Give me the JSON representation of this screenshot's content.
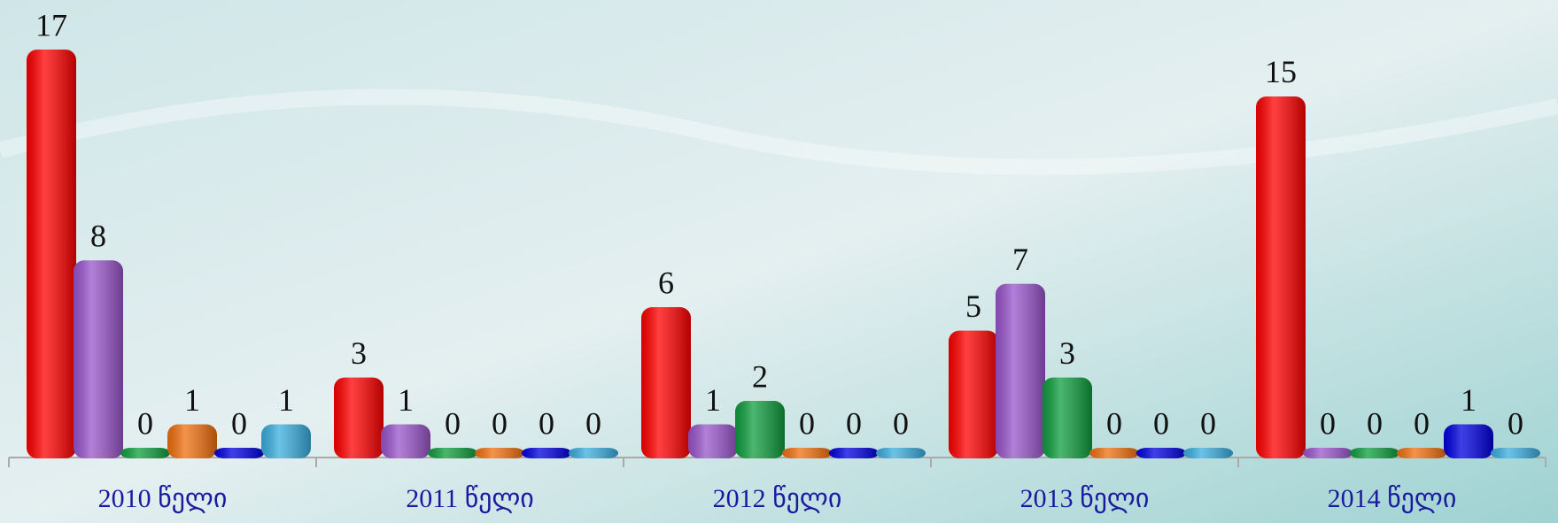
{
  "chart_data": {
    "type": "bar",
    "categories": [
      "2010 წელი",
      "2011 წელი",
      "2012 წელი",
      "2013 წელი",
      "2014 წელი"
    ],
    "series": [
      {
        "color": "#ff0000",
        "values": [
          17,
          3,
          6,
          5,
          15
        ]
      },
      {
        "color": "#9a55cc",
        "values": [
          8,
          1,
          1,
          7,
          0
        ]
      },
      {
        "color": "#0e9e3e",
        "values": [
          0,
          0,
          2,
          3,
          0
        ]
      },
      {
        "color": "#f07010",
        "values": [
          1,
          0,
          0,
          0,
          0
        ]
      },
      {
        "color": "#0000e0",
        "values": [
          0,
          0,
          0,
          0,
          1
        ]
      },
      {
        "color": "#3aaee0",
        "values": [
          1,
          0,
          0,
          0,
          0
        ]
      }
    ]
  }
}
